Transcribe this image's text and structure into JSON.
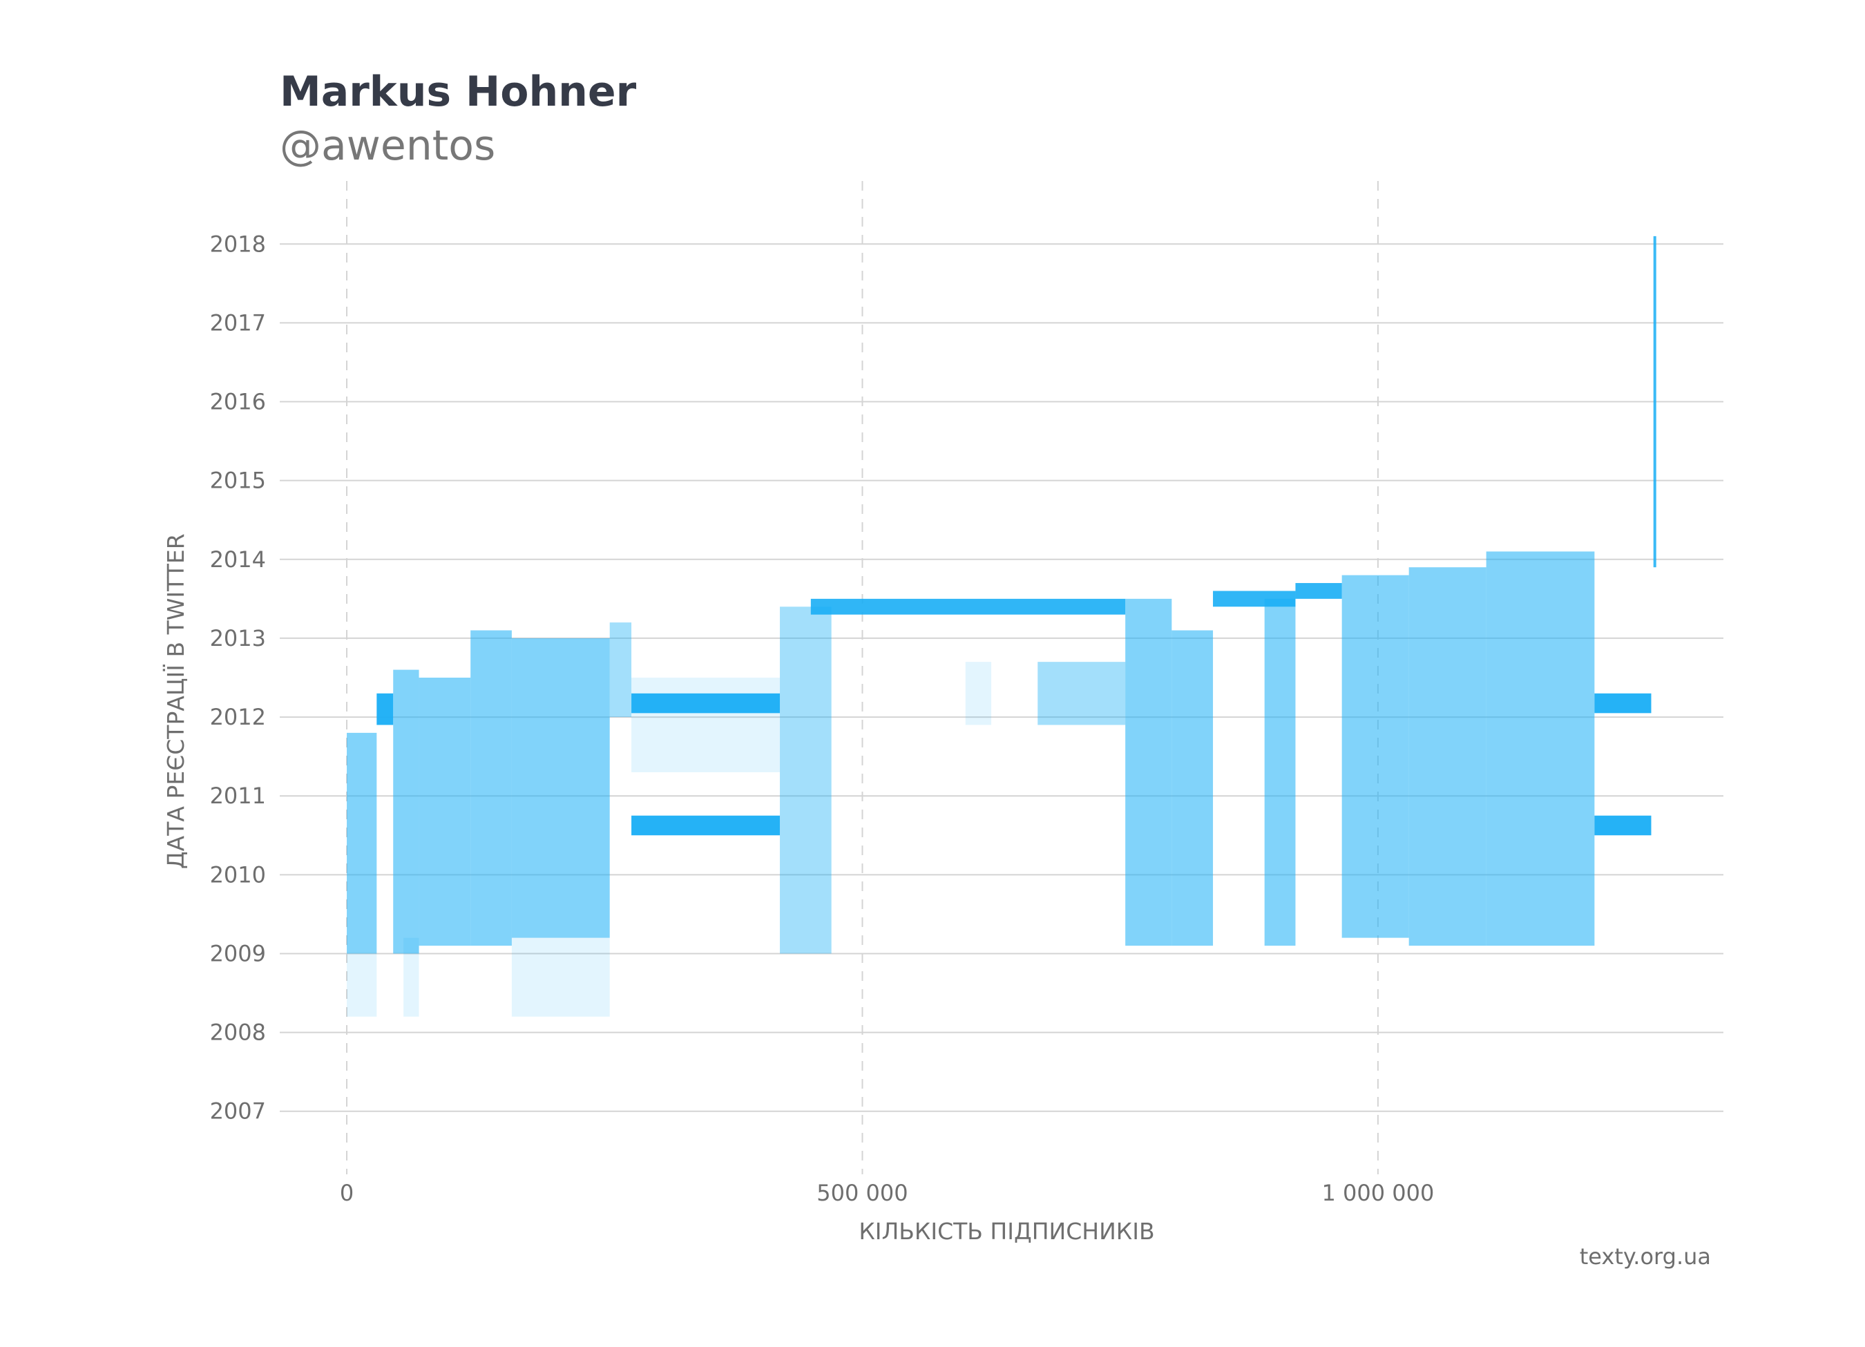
{
  "header": {
    "title": "Markus Hohner",
    "subtitle": "@awentos"
  },
  "footer": {
    "source": "texty.org.ua"
  },
  "colors": {
    "points": "#19aef5",
    "grid": "#d4d4d4",
    "text": "#6e6e6e",
    "title": "#363b48"
  },
  "chart_data": {
    "type": "scatter",
    "title": "Markus Hohner",
    "subtitle": "@awentos",
    "xlabel": "КІЛЬКІСТЬ ПІДПИСНИКІВ",
    "ylabel": "ДАТА РЕЄСТРАЦІЇ В TWITTER",
    "x_ticks": [
      0,
      500000,
      1000000
    ],
    "x_tick_labels": [
      "0",
      "500 000",
      "1 000 000"
    ],
    "y_ticks": [
      2007,
      2008,
      2009,
      2010,
      2011,
      2012,
      2013,
      2014,
      2015,
      2016,
      2017,
      2018
    ],
    "y_tick_labels": [
      "2007",
      "2008",
      "2009",
      "2010",
      "2011",
      "2012",
      "2013",
      "2014",
      "2015",
      "2016",
      "2017",
      "2018"
    ],
    "xlim": [
      -65000,
      1335000
    ],
    "ylim": [
      2006.2,
      2018.8
    ],
    "grid": "horizontal solid, vertical dashed",
    "series": [
      {
        "regions": [
          {
            "x": [
              0,
              29000
            ],
            "y": [
              2009.0,
              2011.8
            ],
            "density": "high"
          },
          {
            "x": [
              0,
              29000
            ],
            "y": [
              2008.2,
              2009.0
            ],
            "density": "low"
          },
          {
            "x": [
              29000,
              45000
            ],
            "y": [
              2011.9,
              2012.3
            ],
            "density": "solid"
          },
          {
            "x": [
              45000,
              70000
            ],
            "y": [
              2009.0,
              2012.6
            ],
            "density": "high"
          },
          {
            "x": [
              55000,
              70000
            ],
            "y": [
              2008.2,
              2009.2
            ],
            "density": "low"
          },
          {
            "x": [
              70000,
              120000
            ],
            "y": [
              2009.1,
              2012.5
            ],
            "density": "high"
          },
          {
            "x": [
              120000,
              160000
            ],
            "y": [
              2009.1,
              2013.1
            ],
            "density": "high"
          },
          {
            "x": [
              160000,
              255000
            ],
            "y": [
              2009.2,
              2013.0
            ],
            "density": "high"
          },
          {
            "x": [
              160000,
              255000
            ],
            "y": [
              2008.2,
              2009.2
            ],
            "density": "low"
          },
          {
            "x": [
              255000,
              276000
            ],
            "y": [
              2012.0,
              2013.2
            ],
            "density": "medium"
          },
          {
            "x": [
              276000,
              420000
            ],
            "y": [
              2012.05,
              2012.3
            ],
            "density": "solid"
          },
          {
            "x": [
              276000,
              420000
            ],
            "y": [
              2010.5,
              2010.75
            ],
            "density": "solid"
          },
          {
            "x": [
              276000,
              420000
            ],
            "y": [
              2011.3,
              2012.5
            ],
            "density": "low"
          },
          {
            "x": [
              420000,
              470000
            ],
            "y": [
              2009.0,
              2013.4
            ],
            "density": "medium"
          },
          {
            "x": [
              450000,
              755000
            ],
            "y": [
              2013.3,
              2013.5
            ],
            "density": "band"
          },
          {
            "x": [
              600000,
              625000
            ],
            "y": [
              2011.9,
              2012.7
            ],
            "density": "low"
          },
          {
            "x": [
              670000,
              755000
            ],
            "y": [
              2011.9,
              2012.7
            ],
            "density": "medium"
          },
          {
            "x": [
              755000,
              800000
            ],
            "y": [
              2009.1,
              2013.5
            ],
            "density": "high"
          },
          {
            "x": [
              800000,
              840000
            ],
            "y": [
              2009.1,
              2013.1
            ],
            "density": "high"
          },
          {
            "x": [
              840000,
              920000
            ],
            "y": [
              2013.4,
              2013.6
            ],
            "density": "band"
          },
          {
            "x": [
              890000,
              920000
            ],
            "y": [
              2009.1,
              2013.5
            ],
            "density": "high"
          },
          {
            "x": [
              920000,
              965000
            ],
            "y": [
              2013.5,
              2013.7
            ],
            "density": "band"
          },
          {
            "x": [
              965000,
              1030000
            ],
            "y": [
              2009.2,
              2013.8
            ],
            "density": "high"
          },
          {
            "x": [
              1030000,
              1105000
            ],
            "y": [
              2009.1,
              2013.9
            ],
            "density": "high"
          },
          {
            "x": [
              1105000,
              1210000
            ],
            "y": [
              2009.1,
              2014.1
            ],
            "density": "high"
          },
          {
            "x": [
              1210000,
              1265000
            ],
            "y": [
              2012.05,
              2012.3
            ],
            "density": "solid"
          },
          {
            "x": [
              1210000,
              1265000
            ],
            "y": [
              2010.5,
              2010.75
            ],
            "density": "solid"
          },
          {
            "x": [
              1265000,
              1272000
            ],
            "y": [
              2013.9,
              2018.1
            ],
            "density": "line"
          }
        ]
      }
    ]
  }
}
